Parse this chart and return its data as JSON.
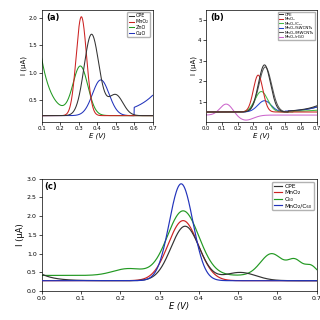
{
  "panel_a": {
    "label": "(a)",
    "xlabel": "E (V)",
    "ylabel": "I (μA)",
    "xlim": [
      0.1,
      0.7
    ],
    "ylim": [
      0.1,
      2.1
    ],
    "yticks": [
      0.5,
      1.0,
      1.5,
      2.0
    ],
    "xticks": [
      0.1,
      0.2,
      0.3,
      0.4,
      0.5,
      0.6,
      0.7
    ],
    "legend": [
      "CPE",
      "MnO₂",
      "ZnO",
      "CuO"
    ],
    "colors": [
      "#333333",
      "#cc2222",
      "#229922",
      "#2233bb"
    ]
  },
  "panel_b": {
    "label": "(b)",
    "xlabel": "E (V)",
    "ylabel": "I (μA)",
    "xlim": [
      0.0,
      0.7
    ],
    "ylim": [
      0.0,
      5.5
    ],
    "yticks": [
      1.0,
      2.0,
      3.0,
      4.0,
      5.0
    ],
    "xticks": [
      0.0,
      0.1,
      0.2,
      0.3,
      0.4,
      0.5,
      0.6,
      0.7
    ],
    "legend": [
      "CPE",
      "MnO₂",
      "MnO₂/C₆₀",
      "MnO₂/SWCNTs",
      "MnO₂/MWCNTs",
      "MnO₂/rGO"
    ],
    "colors": [
      "#333333",
      "#cc2222",
      "#44bb44",
      "#2244cc",
      "#555555",
      "#cc66cc"
    ]
  },
  "panel_c": {
    "label": "(c)",
    "xlabel": "E (V)",
    "ylabel": "I (μA)",
    "xlim": [
      0.0,
      0.7
    ],
    "ylim": [
      0.0,
      3.0
    ],
    "yticks": [
      0.0,
      0.5,
      1.0,
      1.5,
      2.0,
      2.5,
      3.0
    ],
    "xticks": [
      0.0,
      0.1,
      0.2,
      0.3,
      0.4,
      0.5,
      0.6,
      0.7
    ],
    "legend": [
      "CPE",
      "MnO₂",
      "C₆₀",
      "MnO₂/C₆₀"
    ],
    "colors": [
      "#333333",
      "#cc2222",
      "#229922",
      "#2233bb"
    ]
  }
}
